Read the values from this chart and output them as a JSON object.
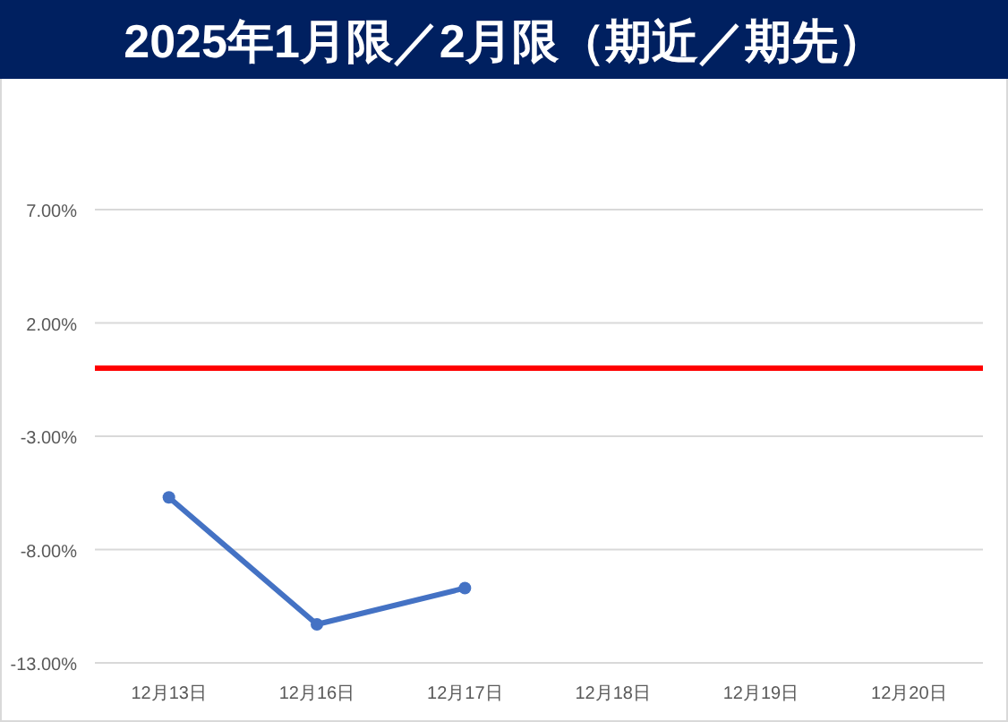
{
  "chart_data": {
    "type": "line",
    "title": "2025年1月限／2月限（期近／期先）",
    "categories": [
      "12月13日",
      "12月16日",
      "12月17日",
      "12月18日",
      "12月19日",
      "12月20日"
    ],
    "series": [
      {
        "color": "#4472c4",
        "values": [
          -5.7,
          -11.3,
          -9.7,
          null,
          null,
          null
        ]
      }
    ],
    "ylim": [
      -13,
      7
    ],
    "yticks": [
      {
        "value": -13,
        "label": "-13.00%"
      },
      {
        "value": -8,
        "label": "-8.00%"
      },
      {
        "value": -3,
        "label": "-3.00%"
      },
      {
        "value": 2,
        "label": "2.00%"
      },
      {
        "value": 7,
        "label": "7.00%"
      }
    ],
    "ref_lines": [
      {
        "axis": "y",
        "value": 0,
        "color": "#ff0000"
      }
    ],
    "grid": "y",
    "marker": "circle",
    "line_style": "solid"
  }
}
